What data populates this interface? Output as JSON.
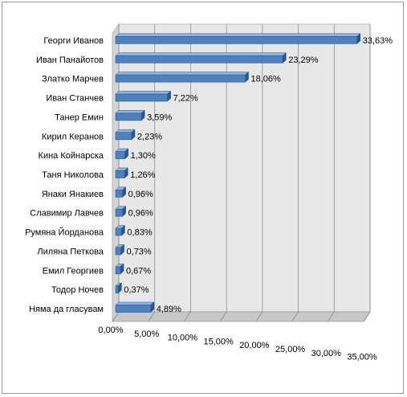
{
  "chart_data": {
    "type": "bar",
    "orientation": "horizontal",
    "style": "3d",
    "categories": [
      "Георги Иванов",
      "Иван Панайотов",
      "Златко Марчев",
      "Иван Станчев",
      "Танер Емин",
      "Кирил Керанов",
      "Кина Койнарска",
      "Таня Николова",
      "Янаки Янакиев",
      "Славимир Лавчев",
      "Румяна Йорданова",
      "Лиляна Петкова",
      "Емил Георгиев",
      "Тодор Ночев",
      "Няма да гласувам"
    ],
    "values": [
      33.63,
      23.29,
      18.06,
      7.22,
      3.59,
      2.23,
      1.3,
      1.26,
      0.96,
      0.96,
      0.83,
      0.73,
      0.67,
      0.37,
      4.89
    ],
    "value_labels": [
      "33,63%",
      "23,29%",
      "18,06%",
      "7,22%",
      "3,59%",
      "2,23%",
      "1,30%",
      "1,26%",
      "0,96%",
      "0,96%",
      "0,83%",
      "0,73%",
      "0,67%",
      "0,37%",
      "4,89%"
    ],
    "x_ticks": [
      "0,00%",
      "5,00%",
      "10,00%",
      "15,00%",
      "20,00%",
      "25,00%",
      "30,00%",
      "35,00%"
    ],
    "xlim": [
      0,
      35
    ],
    "title": "",
    "xlabel": "",
    "ylabel": "",
    "grid": true,
    "legend": "none",
    "colors": {
      "bar_front": "#4f81bd",
      "bar_top": "#8eb4e3",
      "bar_side": "#2c5690",
      "wall": "#e8e8e8",
      "floor": "#c8c8c8",
      "gridline": "#8c8c8c"
    }
  }
}
